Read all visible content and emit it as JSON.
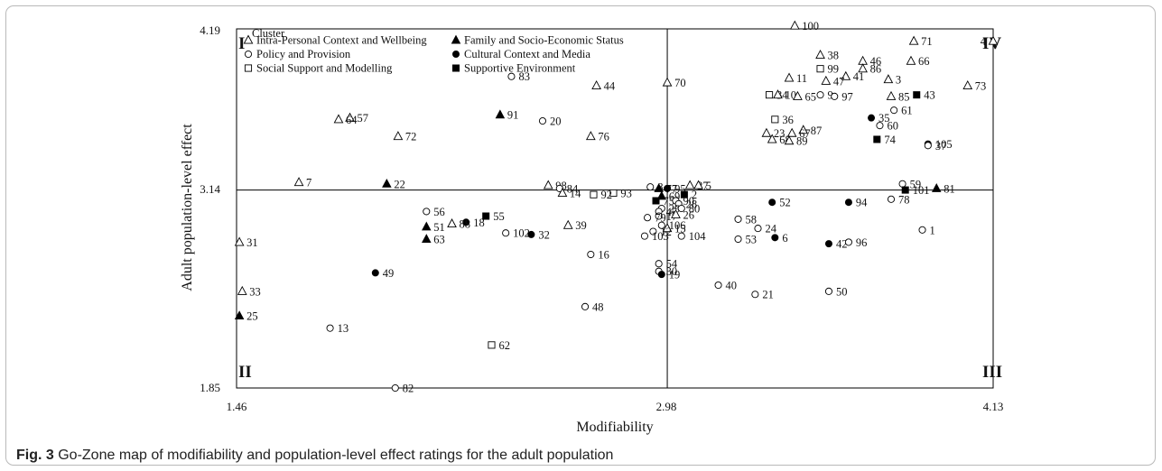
{
  "figure": {
    "caption_label": "Fig. 3",
    "caption_text": "Go-Zone map of modifiability and population-level effect ratings for the adult population"
  },
  "chart_data": {
    "type": "scatter",
    "xlabel": "Modifiability",
    "ylabel": "Adult population-level effect",
    "xlim": [
      1.46,
      4.13
    ],
    "ylim": [
      1.85,
      4.19
    ],
    "x_ticks": [
      "1.46",
      "2.98",
      "4.13"
    ],
    "y_ticks": [
      "4.19",
      "3.14",
      "1.85"
    ],
    "divider_x": 2.98,
    "divider_y": 3.14,
    "quadrants": {
      "top_left": "I",
      "top_right": "IV",
      "bottom_left": "II",
      "bottom_right": "III"
    },
    "legend_title": "Cluster",
    "legend": [
      {
        "symbol": "open-triangle",
        "label": "Intra-Personal Context and Wellbeing"
      },
      {
        "symbol": "filled-triangle",
        "label": "Family and Socio-Economic Status"
      },
      {
        "symbol": "open-circle",
        "label": "Policy and Provision"
      },
      {
        "symbol": "filled-circle",
        "label": "Cultural Context and Media"
      },
      {
        "symbol": "open-square",
        "label": "Social Support and Modelling"
      },
      {
        "symbol": "filled-square",
        "label": "Supportive Environment"
      }
    ],
    "points": [
      {
        "id": "100",
        "x": 3.43,
        "y": 4.21,
        "symbol": "open-triangle"
      },
      {
        "id": "4",
        "x": 4.13,
        "y": 4.11,
        "symbol": "open-triangle"
      },
      {
        "id": "71",
        "x": 3.85,
        "y": 4.11,
        "symbol": "open-triangle"
      },
      {
        "id": "38",
        "x": 3.52,
        "y": 4.02,
        "symbol": "open-triangle"
      },
      {
        "id": "46",
        "x": 3.67,
        "y": 3.98,
        "symbol": "open-triangle"
      },
      {
        "id": "66",
        "x": 3.84,
        "y": 3.98,
        "symbol": "open-triangle"
      },
      {
        "id": "86",
        "x": 3.67,
        "y": 3.93,
        "symbol": "open-triangle"
      },
      {
        "id": "11",
        "x": 3.41,
        "y": 3.87,
        "symbol": "open-triangle"
      },
      {
        "id": "99",
        "x": 3.52,
        "y": 3.93,
        "symbol": "open-square"
      },
      {
        "id": "41",
        "x": 3.61,
        "y": 3.88,
        "symbol": "open-triangle"
      },
      {
        "id": "47",
        "x": 3.54,
        "y": 3.85,
        "symbol": "open-triangle"
      },
      {
        "id": "3",
        "x": 3.76,
        "y": 3.86,
        "symbol": "open-triangle"
      },
      {
        "id": "73",
        "x": 4.04,
        "y": 3.82,
        "symbol": "open-triangle"
      },
      {
        "id": "83",
        "x": 2.43,
        "y": 3.88,
        "symbol": "open-circle"
      },
      {
        "id": "70",
        "x": 2.98,
        "y": 3.84,
        "symbol": "open-triangle"
      },
      {
        "id": "44",
        "x": 2.73,
        "y": 3.82,
        "symbol": "open-triangle"
      },
      {
        "id": "34",
        "x": 3.34,
        "y": 3.76,
        "symbol": "open-square"
      },
      {
        "id": "10",
        "x": 3.37,
        "y": 3.76,
        "symbol": "open-triangle"
      },
      {
        "id": "65",
        "x": 3.44,
        "y": 3.75,
        "symbol": "open-triangle"
      },
      {
        "id": "9",
        "x": 3.52,
        "y": 3.76,
        "symbol": "open-circle"
      },
      {
        "id": "97",
        "x": 3.57,
        "y": 3.75,
        "symbol": "open-circle"
      },
      {
        "id": "85",
        "x": 3.77,
        "y": 3.75,
        "symbol": "open-triangle"
      },
      {
        "id": "43",
        "x": 3.86,
        "y": 3.76,
        "symbol": "filled-square"
      },
      {
        "id": "35",
        "x": 3.7,
        "y": 3.61,
        "symbol": "filled-circle"
      },
      {
        "id": "61",
        "x": 3.78,
        "y": 3.66,
        "symbol": "open-circle"
      },
      {
        "id": "60",
        "x": 3.73,
        "y": 3.56,
        "symbol": "open-circle"
      },
      {
        "id": "91",
        "x": 2.39,
        "y": 3.63,
        "symbol": "filled-triangle"
      },
      {
        "id": "20",
        "x": 2.54,
        "y": 3.59,
        "symbol": "open-circle"
      },
      {
        "id": "57",
        "x": 1.86,
        "y": 3.61,
        "symbol": "open-triangle"
      },
      {
        "id": "64",
        "x": 1.82,
        "y": 3.6,
        "symbol": "open-triangle"
      },
      {
        "id": "36",
        "x": 3.36,
        "y": 3.6,
        "symbol": "open-square"
      },
      {
        "id": "87",
        "x": 3.46,
        "y": 3.53,
        "symbol": "open-triangle"
      },
      {
        "id": "67",
        "x": 3.42,
        "y": 3.51,
        "symbol": "open-triangle"
      },
      {
        "id": "23",
        "x": 3.33,
        "y": 3.51,
        "symbol": "open-triangle"
      },
      {
        "id": "68",
        "x": 3.35,
        "y": 3.47,
        "symbol": "open-triangle"
      },
      {
        "id": "89",
        "x": 3.41,
        "y": 3.46,
        "symbol": "open-triangle"
      },
      {
        "id": "72",
        "x": 2.03,
        "y": 3.49,
        "symbol": "open-triangle"
      },
      {
        "id": "76",
        "x": 2.71,
        "y": 3.49,
        "symbol": "open-triangle"
      },
      {
        "id": "74",
        "x": 3.72,
        "y": 3.47,
        "symbol": "filled-square"
      },
      {
        "id": "105",
        "x": 3.9,
        "y": 3.44,
        "symbol": "filled-circle"
      },
      {
        "id": "37",
        "x": 3.9,
        "y": 3.43,
        "symbol": "open-circle"
      },
      {
        "id": "7",
        "x": 1.68,
        "y": 3.19,
        "symbol": "open-triangle"
      },
      {
        "id": "22",
        "x": 1.99,
        "y": 3.18,
        "symbol": "filled-triangle"
      },
      {
        "id": "98",
        "x": 2.56,
        "y": 3.17,
        "symbol": "open-triangle"
      },
      {
        "id": "84",
        "x": 2.6,
        "y": 3.15,
        "symbol": "open-circle"
      },
      {
        "id": "8",
        "x": 2.92,
        "y": 3.16,
        "symbol": "open-circle"
      },
      {
        "id": "93",
        "x": 2.79,
        "y": 3.12,
        "symbol": "open-square"
      },
      {
        "id": "77",
        "x": 2.95,
        "y": 3.15,
        "symbol": "filled-triangle"
      },
      {
        "id": "95",
        "x": 2.98,
        "y": 3.15,
        "symbol": "filled-circle"
      },
      {
        "id": "27",
        "x": 3.06,
        "y": 3.17,
        "symbol": "open-triangle"
      },
      {
        "id": "5",
        "x": 3.09,
        "y": 3.17,
        "symbol": "open-triangle"
      },
      {
        "id": "59",
        "x": 3.81,
        "y": 3.18,
        "symbol": "open-circle"
      },
      {
        "id": "81",
        "x": 3.93,
        "y": 3.15,
        "symbol": "filled-triangle"
      },
      {
        "id": "101",
        "x": 3.82,
        "y": 3.14,
        "symbol": "filled-square"
      },
      {
        "id": "14",
        "x": 2.61,
        "y": 3.12,
        "symbol": "open-triangle"
      },
      {
        "id": "92",
        "x": 2.72,
        "y": 3.11,
        "symbol": "open-square"
      },
      {
        "id": "69",
        "x": 2.96,
        "y": 3.1,
        "symbol": "filled-triangle"
      },
      {
        "id": "2",
        "x": 3.04,
        "y": 3.11,
        "symbol": "filled-square"
      },
      {
        "id": "75",
        "x": 2.94,
        "y": 3.07,
        "symbol": "filled-square"
      },
      {
        "id": "90",
        "x": 3.01,
        "y": 3.07,
        "symbol": "open-circle"
      },
      {
        "id": "28",
        "x": 3.02,
        "y": 3.05,
        "symbol": "open-circle"
      },
      {
        "id": "29",
        "x": 2.96,
        "y": 3.02,
        "symbol": "open-circle"
      },
      {
        "id": "80",
        "x": 3.03,
        "y": 3.02,
        "symbol": "open-circle"
      },
      {
        "id": "45",
        "x": 2.95,
        "y": 3.0,
        "symbol": "open-circle"
      },
      {
        "id": "17",
        "x": 2.95,
        "y": 2.97,
        "symbol": "open-circle"
      },
      {
        "id": "26",
        "x": 3.01,
        "y": 2.98,
        "symbol": "open-triangle"
      },
      {
        "id": "79",
        "x": 2.91,
        "y": 2.96,
        "symbol": "open-circle"
      },
      {
        "id": "106",
        "x": 2.96,
        "y": 2.91,
        "symbol": "open-circle"
      },
      {
        "id": "15",
        "x": 2.98,
        "y": 2.89,
        "symbol": "open-triangle"
      },
      {
        "id": "12",
        "x": 2.93,
        "y": 2.87,
        "symbol": "open-circle"
      },
      {
        "id": "103",
        "x": 2.9,
        "y": 2.84,
        "symbol": "open-circle"
      },
      {
        "id": "104",
        "x": 3.03,
        "y": 2.84,
        "symbol": "open-circle"
      },
      {
        "id": "52",
        "x": 3.35,
        "y": 3.06,
        "symbol": "filled-circle"
      },
      {
        "id": "94",
        "x": 3.62,
        "y": 3.06,
        "symbol": "filled-circle"
      },
      {
        "id": "78",
        "x": 3.77,
        "y": 3.08,
        "symbol": "open-circle"
      },
      {
        "id": "56",
        "x": 2.13,
        "y": 3.0,
        "symbol": "open-circle"
      },
      {
        "id": "18",
        "x": 2.27,
        "y": 2.93,
        "symbol": "filled-circle"
      },
      {
        "id": "55",
        "x": 2.34,
        "y": 2.97,
        "symbol": "filled-square"
      },
      {
        "id": "51",
        "x": 2.13,
        "y": 2.9,
        "symbol": "filled-triangle"
      },
      {
        "id": "63",
        "x": 2.13,
        "y": 2.82,
        "symbol": "filled-triangle"
      },
      {
        "id": "88",
        "x": 2.22,
        "y": 2.92,
        "symbol": "open-triangle"
      },
      {
        "id": "102",
        "x": 2.41,
        "y": 2.86,
        "symbol": "open-circle"
      },
      {
        "id": "32",
        "x": 2.5,
        "y": 2.85,
        "symbol": "filled-circle"
      },
      {
        "id": "39",
        "x": 2.63,
        "y": 2.91,
        "symbol": "open-triangle"
      },
      {
        "id": "58",
        "x": 3.23,
        "y": 2.95,
        "symbol": "open-circle"
      },
      {
        "id": "24",
        "x": 3.3,
        "y": 2.89,
        "symbol": "open-circle"
      },
      {
        "id": "53",
        "x": 3.23,
        "y": 2.82,
        "symbol": "open-circle"
      },
      {
        "id": "6",
        "x": 3.36,
        "y": 2.83,
        "symbol": "filled-circle"
      },
      {
        "id": "42",
        "x": 3.55,
        "y": 2.79,
        "symbol": "filled-circle"
      },
      {
        "id": "96",
        "x": 3.62,
        "y": 2.8,
        "symbol": "open-circle"
      },
      {
        "id": "1",
        "x": 3.88,
        "y": 2.88,
        "symbol": "open-circle"
      },
      {
        "id": "31",
        "x": 1.47,
        "y": 2.8,
        "symbol": "open-triangle"
      },
      {
        "id": "16",
        "x": 2.71,
        "y": 2.72,
        "symbol": "open-circle"
      },
      {
        "id": "54",
        "x": 2.95,
        "y": 2.66,
        "symbol": "open-circle"
      },
      {
        "id": "30",
        "x": 2.95,
        "y": 2.61,
        "symbol": "open-circle"
      },
      {
        "id": "19",
        "x": 2.96,
        "y": 2.59,
        "symbol": "filled-circle"
      },
      {
        "id": "49",
        "x": 1.95,
        "y": 2.6,
        "symbol": "filled-circle"
      },
      {
        "id": "40",
        "x": 3.16,
        "y": 2.52,
        "symbol": "open-circle"
      },
      {
        "id": "21",
        "x": 3.29,
        "y": 2.46,
        "symbol": "open-circle"
      },
      {
        "id": "50",
        "x": 3.55,
        "y": 2.48,
        "symbol": "open-circle"
      },
      {
        "id": "33",
        "x": 1.48,
        "y": 2.48,
        "symbol": "open-triangle"
      },
      {
        "id": "48",
        "x": 2.69,
        "y": 2.38,
        "symbol": "open-circle"
      },
      {
        "id": "25",
        "x": 1.47,
        "y": 2.32,
        "symbol": "filled-triangle"
      },
      {
        "id": "13",
        "x": 1.79,
        "y": 2.24,
        "symbol": "open-circle"
      },
      {
        "id": "62",
        "x": 2.36,
        "y": 2.13,
        "symbol": "open-square"
      },
      {
        "id": "82",
        "x": 2.02,
        "y": 1.85,
        "symbol": "open-circle"
      }
    ]
  }
}
